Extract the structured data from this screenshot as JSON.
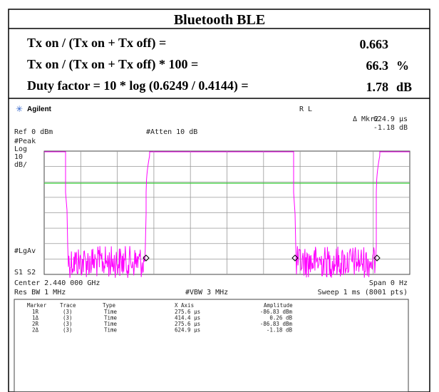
{
  "header": {
    "title": "Bluetooth BLE",
    "rows": [
      {
        "label": "Tx on / (Tx on + Tx off) =",
        "value": "0.663"
      },
      {
        "label": "Tx on / (Tx on + Tx off) * 100 =",
        "value": "66.3",
        "unit": "%"
      },
      {
        "label": "Duty factor = 10 * log (0.6249 / 0.4144) =",
        "value": "1.78",
        "unit": "dB"
      }
    ]
  },
  "analyzer": {
    "brand": "Agilent",
    "mode": "R L",
    "marker_readout": "Δ Mkr2",
    "marker_x": "624.9 µs",
    "marker_y": "-1.18 dB",
    "ref": "Ref 0 dBm",
    "atten": "#Atten 10 dB",
    "left_labels": [
      "#Peak",
      "Log",
      "10",
      "dB/"
    ],
    "lgav": "#LgAv",
    "s1s2": "S1  S2",
    "center": "Center 2.440 000 GHz",
    "span": "Span 0 Hz",
    "res_bw": "Res BW 1 MHz",
    "vbw": "#VBW 3 MHz",
    "sweep": "Sweep 1 ms (8001 pts)",
    "marker_table": {
      "columns": [
        "Marker",
        "Trace",
        "Type",
        "X Axis",
        "Amplitude"
      ],
      "rows": [
        [
          "1R",
          "(3)",
          "Time",
          "275.6 µs",
          "-86.83 dBm"
        ],
        [
          "1Δ",
          "(3)",
          "Time",
          "414.4 µs",
          "0.26 dB"
        ],
        [
          "2R",
          "(3)",
          "Time",
          "275.6 µs",
          "-86.83 dBm"
        ],
        [
          "2Δ",
          "(3)",
          "Time",
          "624.9 µs",
          "-1.18 dB"
        ]
      ]
    }
  }
}
